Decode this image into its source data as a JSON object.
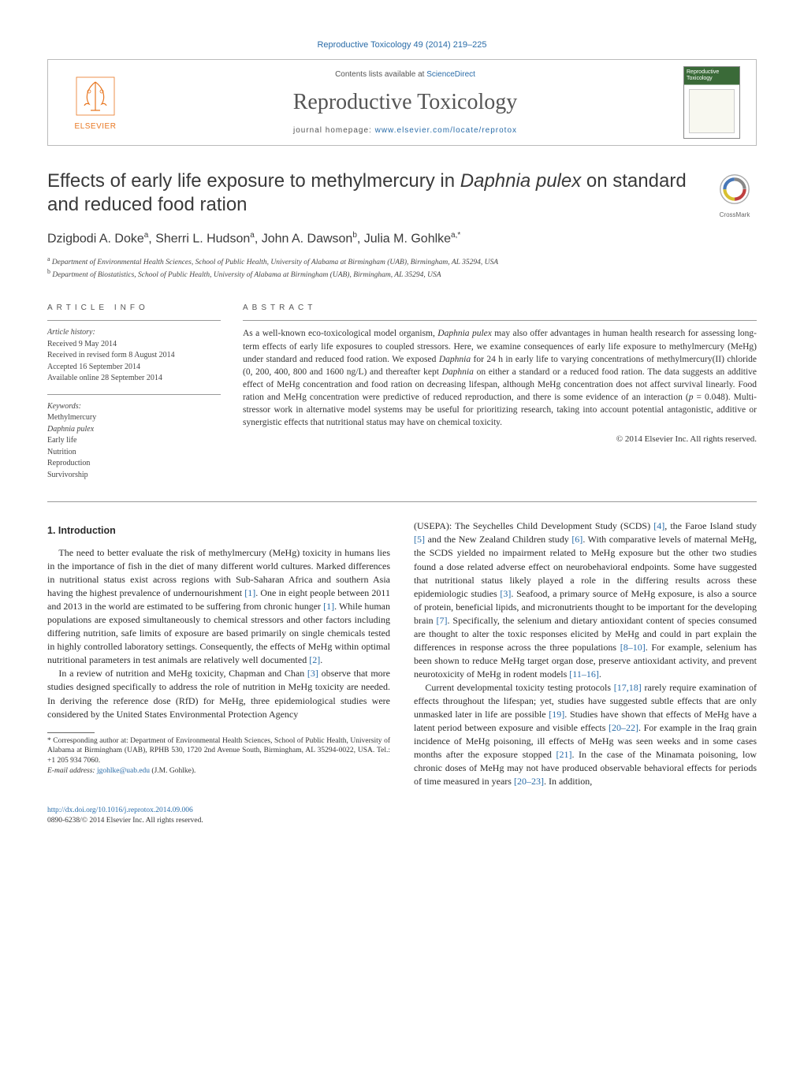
{
  "citation": "Reproductive Toxicology 49 (2014) 219–225",
  "header": {
    "contents_prefix": "Contents lists available at ",
    "contents_link": "ScienceDirect",
    "journal_name": "Reproductive Toxicology",
    "homepage_prefix": "journal homepage: ",
    "homepage_url": "www.elsevier.com/locate/reprotox",
    "publisher": "ELSEVIER",
    "cover_title": "Reproductive Toxicology"
  },
  "colors": {
    "link": "#2a6ca8",
    "elsevier_orange": "#e87722",
    "text": "#2a2a2a",
    "rule": "#999999",
    "cover_green": "#3a6a38"
  },
  "crossmark_label": "CrossMark",
  "title": "Effects of early life exposure to methylmercury in <em>Daphnia pulex</em> on standard and reduced food ration",
  "authors_html": "Dzigbodi A. Doke<sup>a</sup>, Sherri L. Hudson<sup>a</sup>, John A. Dawson<sup>b</sup>, Julia M. Gohlke<sup>a,*</sup>",
  "affiliations": [
    "<sup>a</sup> Department of Environmental Health Sciences, School of Public Health, University of Alabama at Birmingham (UAB), Birmingham, AL 35294, USA",
    "<sup>b</sup> Department of Biostatistics, School of Public Health, University of Alabama at Birmingham (UAB), Birmingham, AL 35294, USA"
  ],
  "article_info": {
    "heading": "ARTICLE INFO",
    "history_label": "Article history:",
    "history": [
      "Received 9 May 2014",
      "Received in revised form 8 August 2014",
      "Accepted 16 September 2014",
      "Available online 28 September 2014"
    ],
    "keywords_label": "Keywords:",
    "keywords": [
      "Methylmercury",
      "Daphnia pulex",
      "Early life",
      "Nutrition",
      "Reproduction",
      "Survivorship"
    ]
  },
  "abstract": {
    "heading": "ABSTRACT",
    "text": "As a well-known eco-toxicological model organism, <em>Daphnia pulex</em> may also offer advantages in human health research for assessing long-term effects of early life exposures to coupled stressors. Here, we examine consequences of early life exposure to methylmercury (MeHg) under standard and reduced food ration. We exposed <em>Daphnia</em> for 24 h in early life to varying concentrations of methylmercury(II) chloride (0, 200, 400, 800 and 1600 ng/L) and thereafter kept <em>Daphnia</em> on either a standard or a reduced food ration. The data suggests an additive effect of MeHg concentration and food ration on decreasing lifespan, although MeHg concentration does not affect survival linearly. Food ration and MeHg concentration were predictive of reduced reproduction, and there is some evidence of an interaction (<em>p</em> = 0.048). Multi-stressor work in alternative model systems may be useful for prioritizing research, taking into account potential antagonistic, additive or synergistic effects that nutritional status may have on chemical toxicity.",
    "copyright": "© 2014 Elsevier Inc. All rights reserved."
  },
  "body": {
    "section_heading": "1.  Introduction",
    "p1": "The need to better evaluate the risk of methylmercury (MeHg) toxicity in humans lies in the importance of fish in the diet of many different world cultures. Marked differences in nutritional status exist across regions with Sub-Saharan Africa and southern Asia having the highest prevalence of undernourishment <span class=\"ref\">[1]</span>. One in eight people between 2011 and 2013 in the world are estimated to be suffering from chronic hunger <span class=\"ref\">[1]</span>. While human populations are exposed simultaneously to chemical stressors and other factors including differing nutrition, safe limits of exposure are based primarily on single chemicals tested in highly controlled laboratory settings. Consequently, the effects of MeHg within optimal nutritional parameters in test animals are relatively well documented <span class=\"ref\">[2]</span>.",
    "p2": "In a review of nutrition and MeHg toxicity, Chapman and Chan <span class=\"ref\">[3]</span> observe that more studies designed specifically to address the role of nutrition in MeHg toxicity are needed. In deriving the reference dose (RfD) for MeHg, three epidemiological studies were considered by the United States Environmental Protection Agency",
    "p3_noindent": "(USEPA): The Seychelles Child Development Study (SCDS) <span class=\"ref\">[4]</span>, the Faroe Island study <span class=\"ref\">[5]</span> and the New Zealand Children study <span class=\"ref\">[6]</span>. With comparative levels of maternal MeHg, the SCDS yielded no impairment related to MeHg exposure but the other two studies found a dose related adverse effect on neurobehavioral endpoints. Some have suggested that nutritional status likely played a role in the differing results across these epidemiologic studies <span class=\"ref\">[3]</span>. Seafood, a primary source of MeHg exposure, is also a source of protein, beneficial lipids, and micronutrients thought to be important for the developing brain <span class=\"ref\">[7]</span>. Specifically, the selenium and dietary antioxidant content of species consumed are thought to alter the toxic responses elicited by MeHg and could in part explain the differences in response across the three populations <span class=\"ref\">[8–10]</span>. For example, selenium has been shown to reduce MeHg target organ dose, preserve antioxidant activity, and prevent neurotoxicity of MeHg in rodent models <span class=\"ref\">[11–16]</span>.",
    "p4": "Current developmental toxicity testing protocols <span class=\"ref\">[17,18]</span> rarely require examination of effects throughout the lifespan; yet, studies have suggested subtle effects that are only unmasked later in life are possible <span class=\"ref\">[19]</span>. Studies have shown that effects of MeHg have a latent period between exposure and visible effects <span class=\"ref\">[20–22]</span>. For example in the Iraq grain incidence of MeHg poisoning, ill effects of MeHg was seen weeks and in some cases months after the exposure stopped <span class=\"ref\">[21]</span>. In the case of the Minamata poisoning, low chronic doses of MeHg may not have produced observable behavioral effects for periods of time measured in years <span class=\"ref\">[20–23]</span>. In addition,"
  },
  "footnote": {
    "corresponding": "* Corresponding author at: Department of Environmental Health Sciences, School of Public Health, University of Alabama at Birmingham (UAB), RPHB 530, 1720 2nd Avenue South, Birmingham, AL 35294-0022, USA. Tel.: +1 205 934 7060.",
    "email_label": "E-mail address: ",
    "email": "jgohlke@uab.edu",
    "email_suffix": " (J.M. Gohlke)."
  },
  "bottom": {
    "doi": "http://dx.doi.org/10.1016/j.reprotox.2014.09.006",
    "issn_line": "0890-6238/© 2014 Elsevier Inc. All rights reserved."
  }
}
